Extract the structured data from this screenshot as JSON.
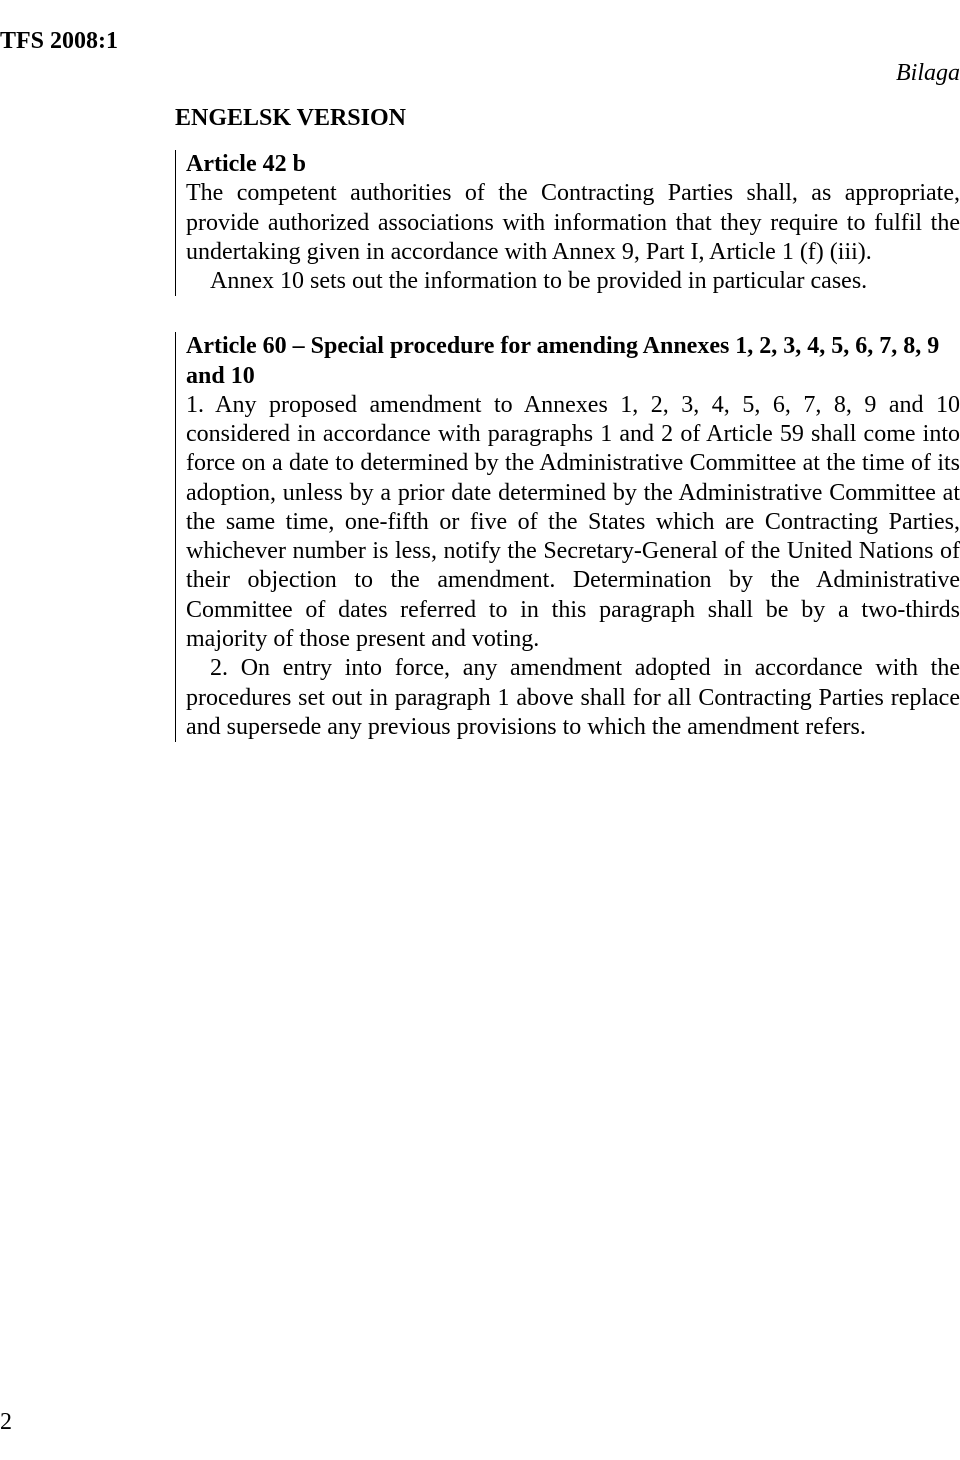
{
  "header": {
    "left": "TFS 2008:1",
    "right": "Bilaga"
  },
  "page_number": "2",
  "section_title": "ENGELSK VERSION",
  "article42b": {
    "heading": "Article 42 b",
    "para1": "The competent authorities of the Contracting Parties shall, as appropriate, provide authorized associations with information that they require to fulfil the undertaking given in accordance with Annex 9, Part I, Article 1 (f) (iii).",
    "para2": "Annex 10 sets out the information to be provided in particular cases."
  },
  "article60": {
    "heading": "Article 60 – Special procedure for amending Annexes 1, 2, 3, 4, 5, 6, 7, 8, 9 and 10",
    "para1": "1. Any proposed amendment to Annexes 1, 2, 3, 4, 5, 6, 7, 8, 9 and 10 considered in accordance with paragraphs 1 and 2 of Article 59 shall come into force on a date to determined by the Administrative Committee at the time of its adoption, unless by a prior date determined by the Administrative Committee at the same time, one-fifth or five of the States which are Contracting Parties, whichever number is less, notify the Secretary-General of the United Nations of their objection to the amendment. Determination by the Administrative Committee of dates referred to in this paragraph shall be by a two-thirds majority of those present and voting.",
    "para2": "2. On entry into force, any amendment adopted in accordance with the procedures set out in paragraph 1 above shall for all Contracting Parties replace and supersede any previous provisions to which the amendment refers."
  }
}
